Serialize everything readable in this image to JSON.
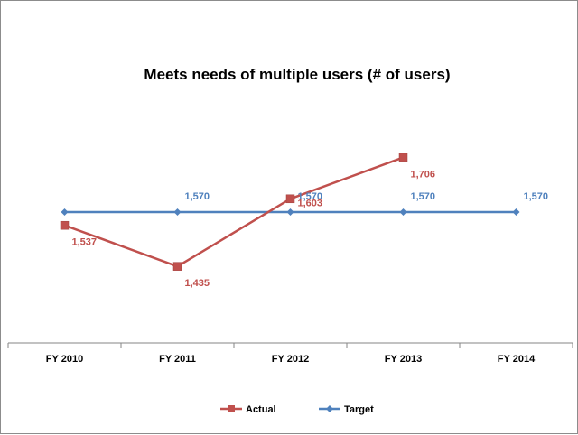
{
  "chart_data": {
    "type": "line",
    "title": "Meets needs of multiple users (# of users)",
    "categories": [
      "FY 2010",
      "FY 2011",
      "FY 2012",
      "FY 2013",
      "FY 2014"
    ],
    "xlabel": "",
    "ylabel": "",
    "ylim": [
      1200,
      1800
    ],
    "grid": false,
    "legend_position": "bottom",
    "series": [
      {
        "name": "Actual",
        "color": "#c0504d",
        "marker": "square",
        "values": [
          1537,
          1435,
          1603,
          1706,
          null
        ],
        "labels": [
          "1,537",
          "1,435",
          "1,603",
          "1,706",
          null
        ]
      },
      {
        "name": "Target",
        "color": "#4f81bd",
        "marker": "diamond",
        "values": [
          1570,
          1570,
          1570,
          1570,
          1570
        ],
        "labels": [
          null,
          "1,570",
          "1,570",
          "1,570",
          "1,570"
        ]
      }
    ]
  }
}
